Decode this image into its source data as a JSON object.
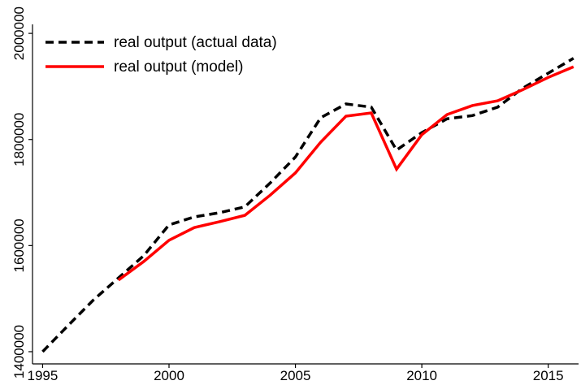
{
  "chart_data": {
    "type": "line",
    "x": [
      1995,
      1996,
      1997,
      1998,
      1999,
      2000,
      2001,
      2002,
      2003,
      2004,
      2005,
      2006,
      2007,
      2008,
      2009,
      2010,
      2011,
      2012,
      2013,
      2014,
      2015,
      2016
    ],
    "series": [
      {
        "name": "real output (actual data)",
        "color": "#000000",
        "dash": true,
        "values": [
          1400000,
          1449000,
          1497000,
          1539000,
          1581000,
          1639000,
          1654000,
          1662000,
          1673000,
          1718000,
          1767000,
          1841000,
          1867000,
          1861000,
          1780000,
          1813000,
          1839000,
          1845000,
          1861000,
          1897000,
          1925000,
          1953000
        ]
      },
      {
        "name": "real output (model)",
        "color": "#ff0000",
        "dash": false,
        "values": [
          null,
          null,
          null,
          1535000,
          1570000,
          1610000,
          1634000,
          1645000,
          1657000,
          1695000,
          1737000,
          1795000,
          1844000,
          1850000,
          1744000,
          1809000,
          1847000,
          1864000,
          1873000,
          1894000,
          1917000,
          1937000
        ]
      }
    ],
    "xlim": [
      1994.6,
      2016.2
    ],
    "xticks": [
      1995,
      2000,
      2005,
      2010,
      2015
    ],
    "ylim": [
      1377000,
      2017000
    ],
    "yticks": [
      1400000,
      1600000,
      1800000,
      2000000
    ],
    "legend": "top-left"
  }
}
